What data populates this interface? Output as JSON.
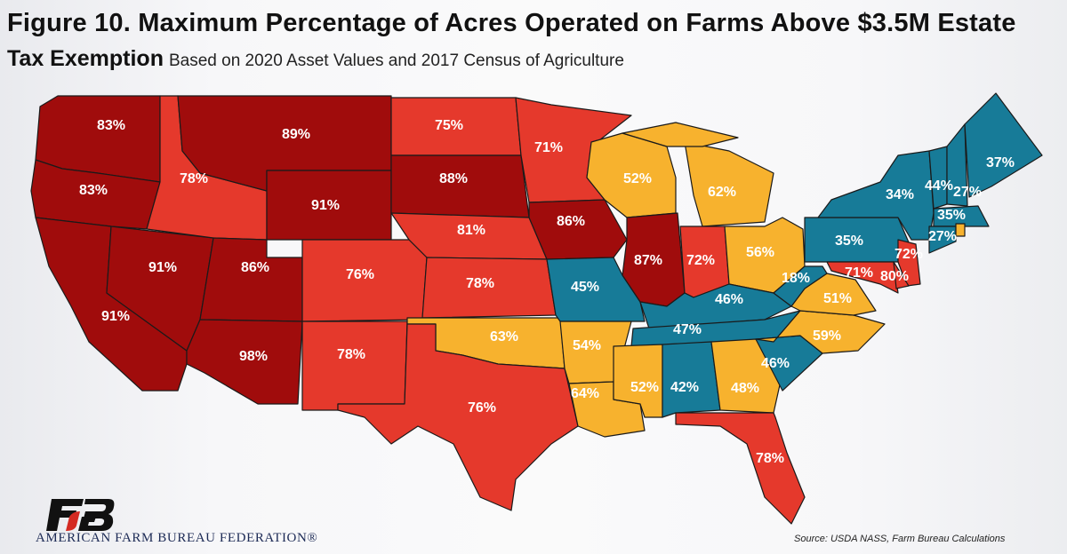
{
  "title": "Figure 10. Maximum Percentage of Acres Operated on Farms Above $3.5M Estate",
  "title_line2": "Tax Exemption",
  "subtitle": "Based on 2020 Asset Values and 2017 Census of Agriculture",
  "source": "Source: USDA NASS, Farm Bureau Calculations",
  "organization": "AMERICAN FARM BUREAU FEDERATION®",
  "logo_text": "FB",
  "colors": {
    "dark_red": "#a00c0c",
    "red": "#e5392c",
    "yellow": "#f7b22e",
    "teal": "#177b98",
    "label": "#ffffff"
  },
  "states": [
    {
      "state": "WA",
      "value": "83%",
      "color": "dark_red"
    },
    {
      "state": "OR",
      "value": "83%",
      "color": "dark_red"
    },
    {
      "state": "CA",
      "value": "91%",
      "color": "dark_red"
    },
    {
      "state": "NV",
      "value": "91%",
      "color": "dark_red"
    },
    {
      "state": "ID",
      "value": "78%",
      "color": "red"
    },
    {
      "state": "MT",
      "value": "89%",
      "color": "dark_red"
    },
    {
      "state": "WY",
      "value": "91%",
      "color": "dark_red"
    },
    {
      "state": "UT",
      "value": "86%",
      "color": "dark_red"
    },
    {
      "state": "AZ",
      "value": "98%",
      "color": "dark_red"
    },
    {
      "state": "CO",
      "value": "76%",
      "color": "red"
    },
    {
      "state": "NM",
      "value": "78%",
      "color": "red"
    },
    {
      "state": "ND",
      "value": "75%",
      "color": "red"
    },
    {
      "state": "SD",
      "value": "88%",
      "color": "dark_red"
    },
    {
      "state": "NE",
      "value": "81%",
      "color": "red"
    },
    {
      "state": "KS",
      "value": "78%",
      "color": "red"
    },
    {
      "state": "OK",
      "value": "63%",
      "color": "yellow"
    },
    {
      "state": "TX",
      "value": "76%",
      "color": "red"
    },
    {
      "state": "MN",
      "value": "71%",
      "color": "red"
    },
    {
      "state": "IA",
      "value": "86%",
      "color": "dark_red"
    },
    {
      "state": "MO",
      "value": "45%",
      "color": "teal"
    },
    {
      "state": "AR",
      "value": "54%",
      "color": "yellow"
    },
    {
      "state": "LA",
      "value": "64%",
      "color": "yellow"
    },
    {
      "state": "WI",
      "value": "52%",
      "color": "yellow"
    },
    {
      "state": "MI",
      "value": "62%",
      "color": "yellow"
    },
    {
      "state": "IL",
      "value": "87%",
      "color": "dark_red"
    },
    {
      "state": "IN",
      "value": "72%",
      "color": "red"
    },
    {
      "state": "OH",
      "value": "56%",
      "color": "yellow"
    },
    {
      "state": "KY",
      "value": "46%",
      "color": "teal"
    },
    {
      "state": "TN",
      "value": "47%",
      "color": "teal"
    },
    {
      "state": "MS",
      "value": "52%",
      "color": "yellow"
    },
    {
      "state": "AL",
      "value": "42%",
      "color": "teal"
    },
    {
      "state": "GA",
      "value": "48%",
      "color": "yellow"
    },
    {
      "state": "FL",
      "value": "78%",
      "color": "red"
    },
    {
      "state": "SC",
      "value": "46%",
      "color": "teal"
    },
    {
      "state": "NC",
      "value": "59%",
      "color": "yellow"
    },
    {
      "state": "VA",
      "value": "51%",
      "color": "yellow"
    },
    {
      "state": "WV",
      "value": "18%",
      "color": "teal"
    },
    {
      "state": "PA",
      "value": "35%",
      "color": "teal"
    },
    {
      "state": "NY",
      "value": "34%",
      "color": "teal"
    },
    {
      "state": "VT",
      "value": "44%",
      "color": "teal"
    },
    {
      "state": "NH",
      "value": "27%",
      "color": "teal"
    },
    {
      "state": "ME",
      "value": "37%",
      "color": "teal"
    },
    {
      "state": "MA",
      "value": "35%",
      "color": "teal"
    },
    {
      "state": "CT",
      "value": "27%",
      "color": "teal"
    },
    {
      "state": "RI",
      "value": "",
      "color": "yellow"
    },
    {
      "state": "NJ",
      "value": "72%",
      "color": "red"
    },
    {
      "state": "MD",
      "value": "71%",
      "color": "red"
    },
    {
      "state": "DE",
      "value": "80%",
      "color": "red"
    }
  ]
}
